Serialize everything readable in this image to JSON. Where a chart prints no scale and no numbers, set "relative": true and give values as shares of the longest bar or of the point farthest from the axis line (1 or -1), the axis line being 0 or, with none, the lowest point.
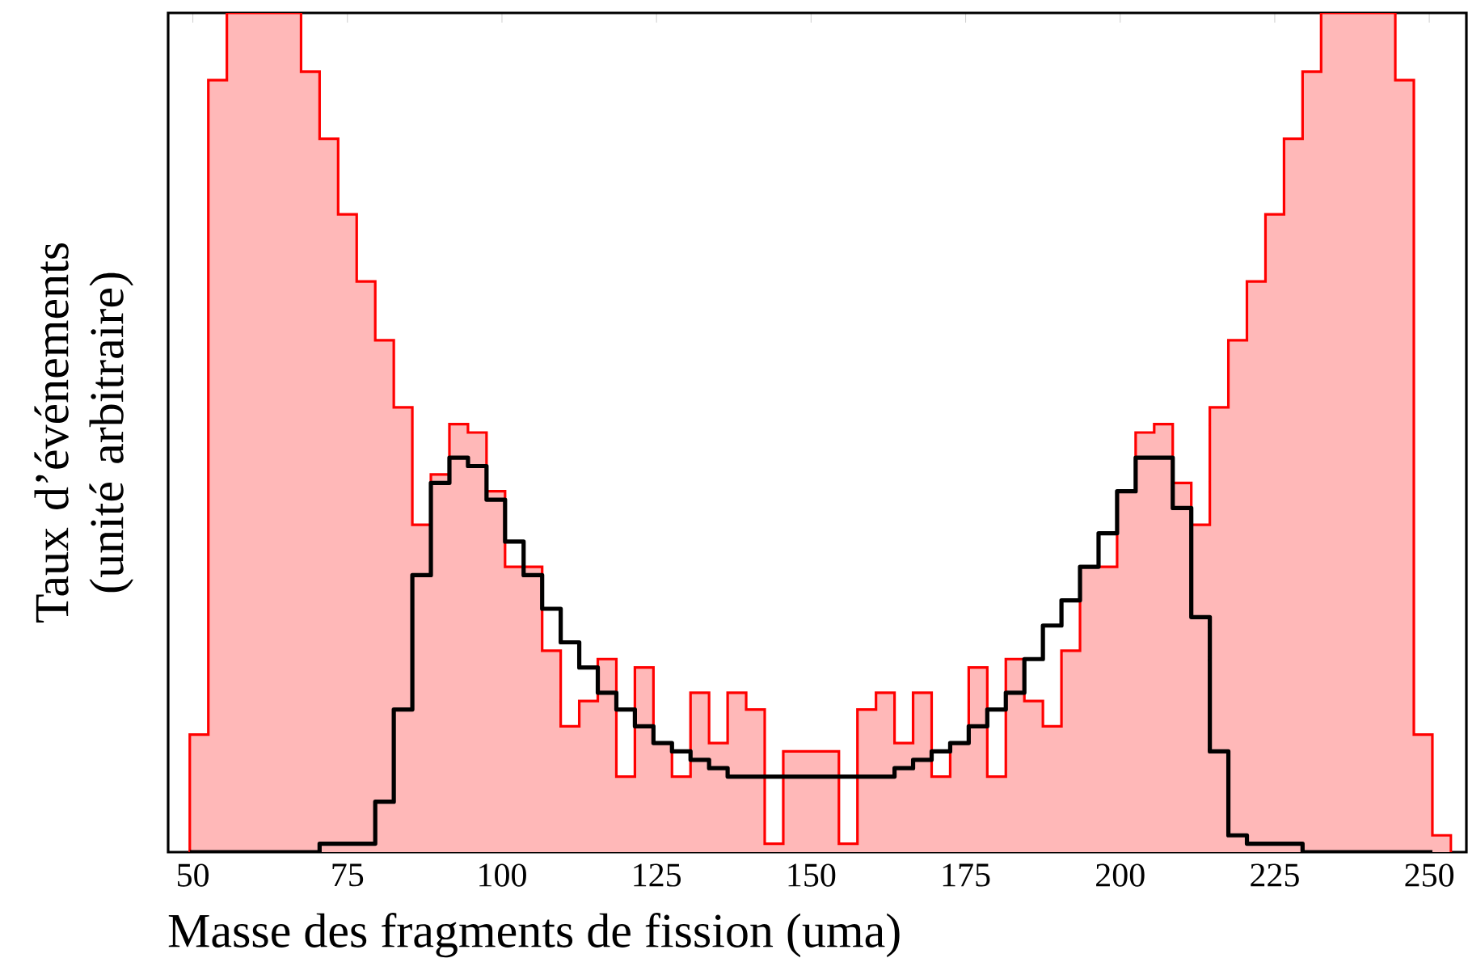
{
  "chart_data": {
    "type": "histogram",
    "relative": true,
    "xlabel": "Masse des fragments de fission (uma)",
    "ylabel": "Taux d’événements (unité arbitraire)",
    "xlim": [
      46,
      256
    ],
    "xticks": [
      50,
      75,
      100,
      125,
      150,
      175,
      200,
      225,
      250
    ],
    "bins": [
      49.5,
      52.5,
      55.5,
      58.5,
      61.5,
      64.5,
      67.5,
      70.5,
      73.5,
      76.5,
      79.5,
      82.5,
      85.5,
      88.5,
      91.5,
      94.5,
      97.5,
      100.5,
      103.5,
      106.5,
      109.5,
      112.5,
      115.5,
      118.5,
      121.5,
      124.5,
      127.5,
      130.5,
      133.5,
      136.5,
      139.5,
      142.5,
      145.5,
      148.5,
      151.5,
      154.5,
      157.5,
      160.5,
      163.5,
      166.5,
      169.5,
      172.5,
      175.5,
      178.5,
      181.5,
      184.5,
      187.5,
      190.5,
      193.5,
      196.5,
      199.5,
      202.5,
      205.5,
      208.5,
      211.5,
      214.5,
      217.5,
      220.5,
      223.5,
      226.5,
      229.5,
      232.5,
      235.5,
      238.5,
      241.5,
      244.5,
      247.5,
      250.5,
      253.5
    ],
    "series": [
      {
        "type": "histogram",
        "color": "#ff0000",
        "values": [
          0.14,
          0.92,
          1,
          1,
          1,
          1,
          0.93,
          0.85,
          0.76,
          0.68,
          0.61,
          0.53,
          0.39,
          0.45,
          0.51,
          0.5,
          0.43,
          0.34,
          0.34,
          0.24,
          0.15,
          0.18,
          0.23,
          0.09,
          0.22,
          0.13,
          0.09,
          0.19,
          0.13,
          0.19,
          0.17,
          0.01,
          0.12,
          0.12,
          0.12,
          0.01,
          0.17,
          0.19,
          0.13,
          0.19,
          0.09,
          0.13,
          0.22,
          0.09,
          0.23,
          0.18,
          0.15,
          0.24,
          0.34,
          0.34,
          0.43,
          0.5,
          0.51,
          0.44,
          0.39,
          0.53,
          0.61,
          0.68,
          0.76,
          0.85,
          0.93,
          1,
          1,
          1,
          1,
          0.92,
          0.14,
          0.02
        ]
      },
      {
        "type": "step",
        "color": "#000000",
        "x": [
          49.5,
          52.5,
          55.5,
          58.5,
          61.5,
          64.5,
          67.5,
          70.5,
          73.5,
          76.5,
          79.5,
          82.5,
          85.5,
          88.5,
          91.5,
          94.5,
          97.5,
          100.5,
          103.5,
          106.5,
          109.5,
          112.5,
          115.5,
          118.5,
          121.5,
          124.5,
          127.5,
          130.5,
          133.5,
          136.5,
          139.5,
          142.5,
          145.5,
          148.5,
          151.5,
          154.5,
          157.5,
          160.5,
          163.5,
          166.5,
          169.5,
          172.5,
          175.5,
          178.5,
          181.5,
          184.5,
          187.5,
          190.5,
          193.5,
          196.5,
          199.5,
          202.5,
          205.5,
          208.5,
          211.5,
          214.5,
          217.5,
          220.5,
          223.5,
          226.5,
          229.5,
          232.5,
          235.5,
          238.5,
          241.5,
          244.5,
          247.5,
          250.5
        ],
        "values": [
          0,
          0,
          0,
          0,
          0,
          0,
          0,
          0.01,
          0.01,
          0.01,
          0.06,
          0.17,
          0.33,
          0.44,
          0.47,
          0.46,
          0.42,
          0.37,
          0.33,
          0.29,
          0.25,
          0.22,
          0.19,
          0.17,
          0.15,
          0.13,
          0.12,
          0.11,
          0.1,
          0.09,
          0.09,
          0.09,
          0.09,
          0.09,
          0.09,
          0.09,
          0.09,
          0.09,
          0.1,
          0.11,
          0.12,
          0.13,
          0.15,
          0.17,
          0.19,
          0.23,
          0.27,
          0.3,
          0.34,
          0.38,
          0.43,
          0.47,
          0.47,
          0.41,
          0.28,
          0.12,
          0.02,
          0.01,
          0.01,
          0.01,
          0,
          0,
          0,
          0,
          0,
          0,
          0,
          0
        ]
      }
    ]
  }
}
